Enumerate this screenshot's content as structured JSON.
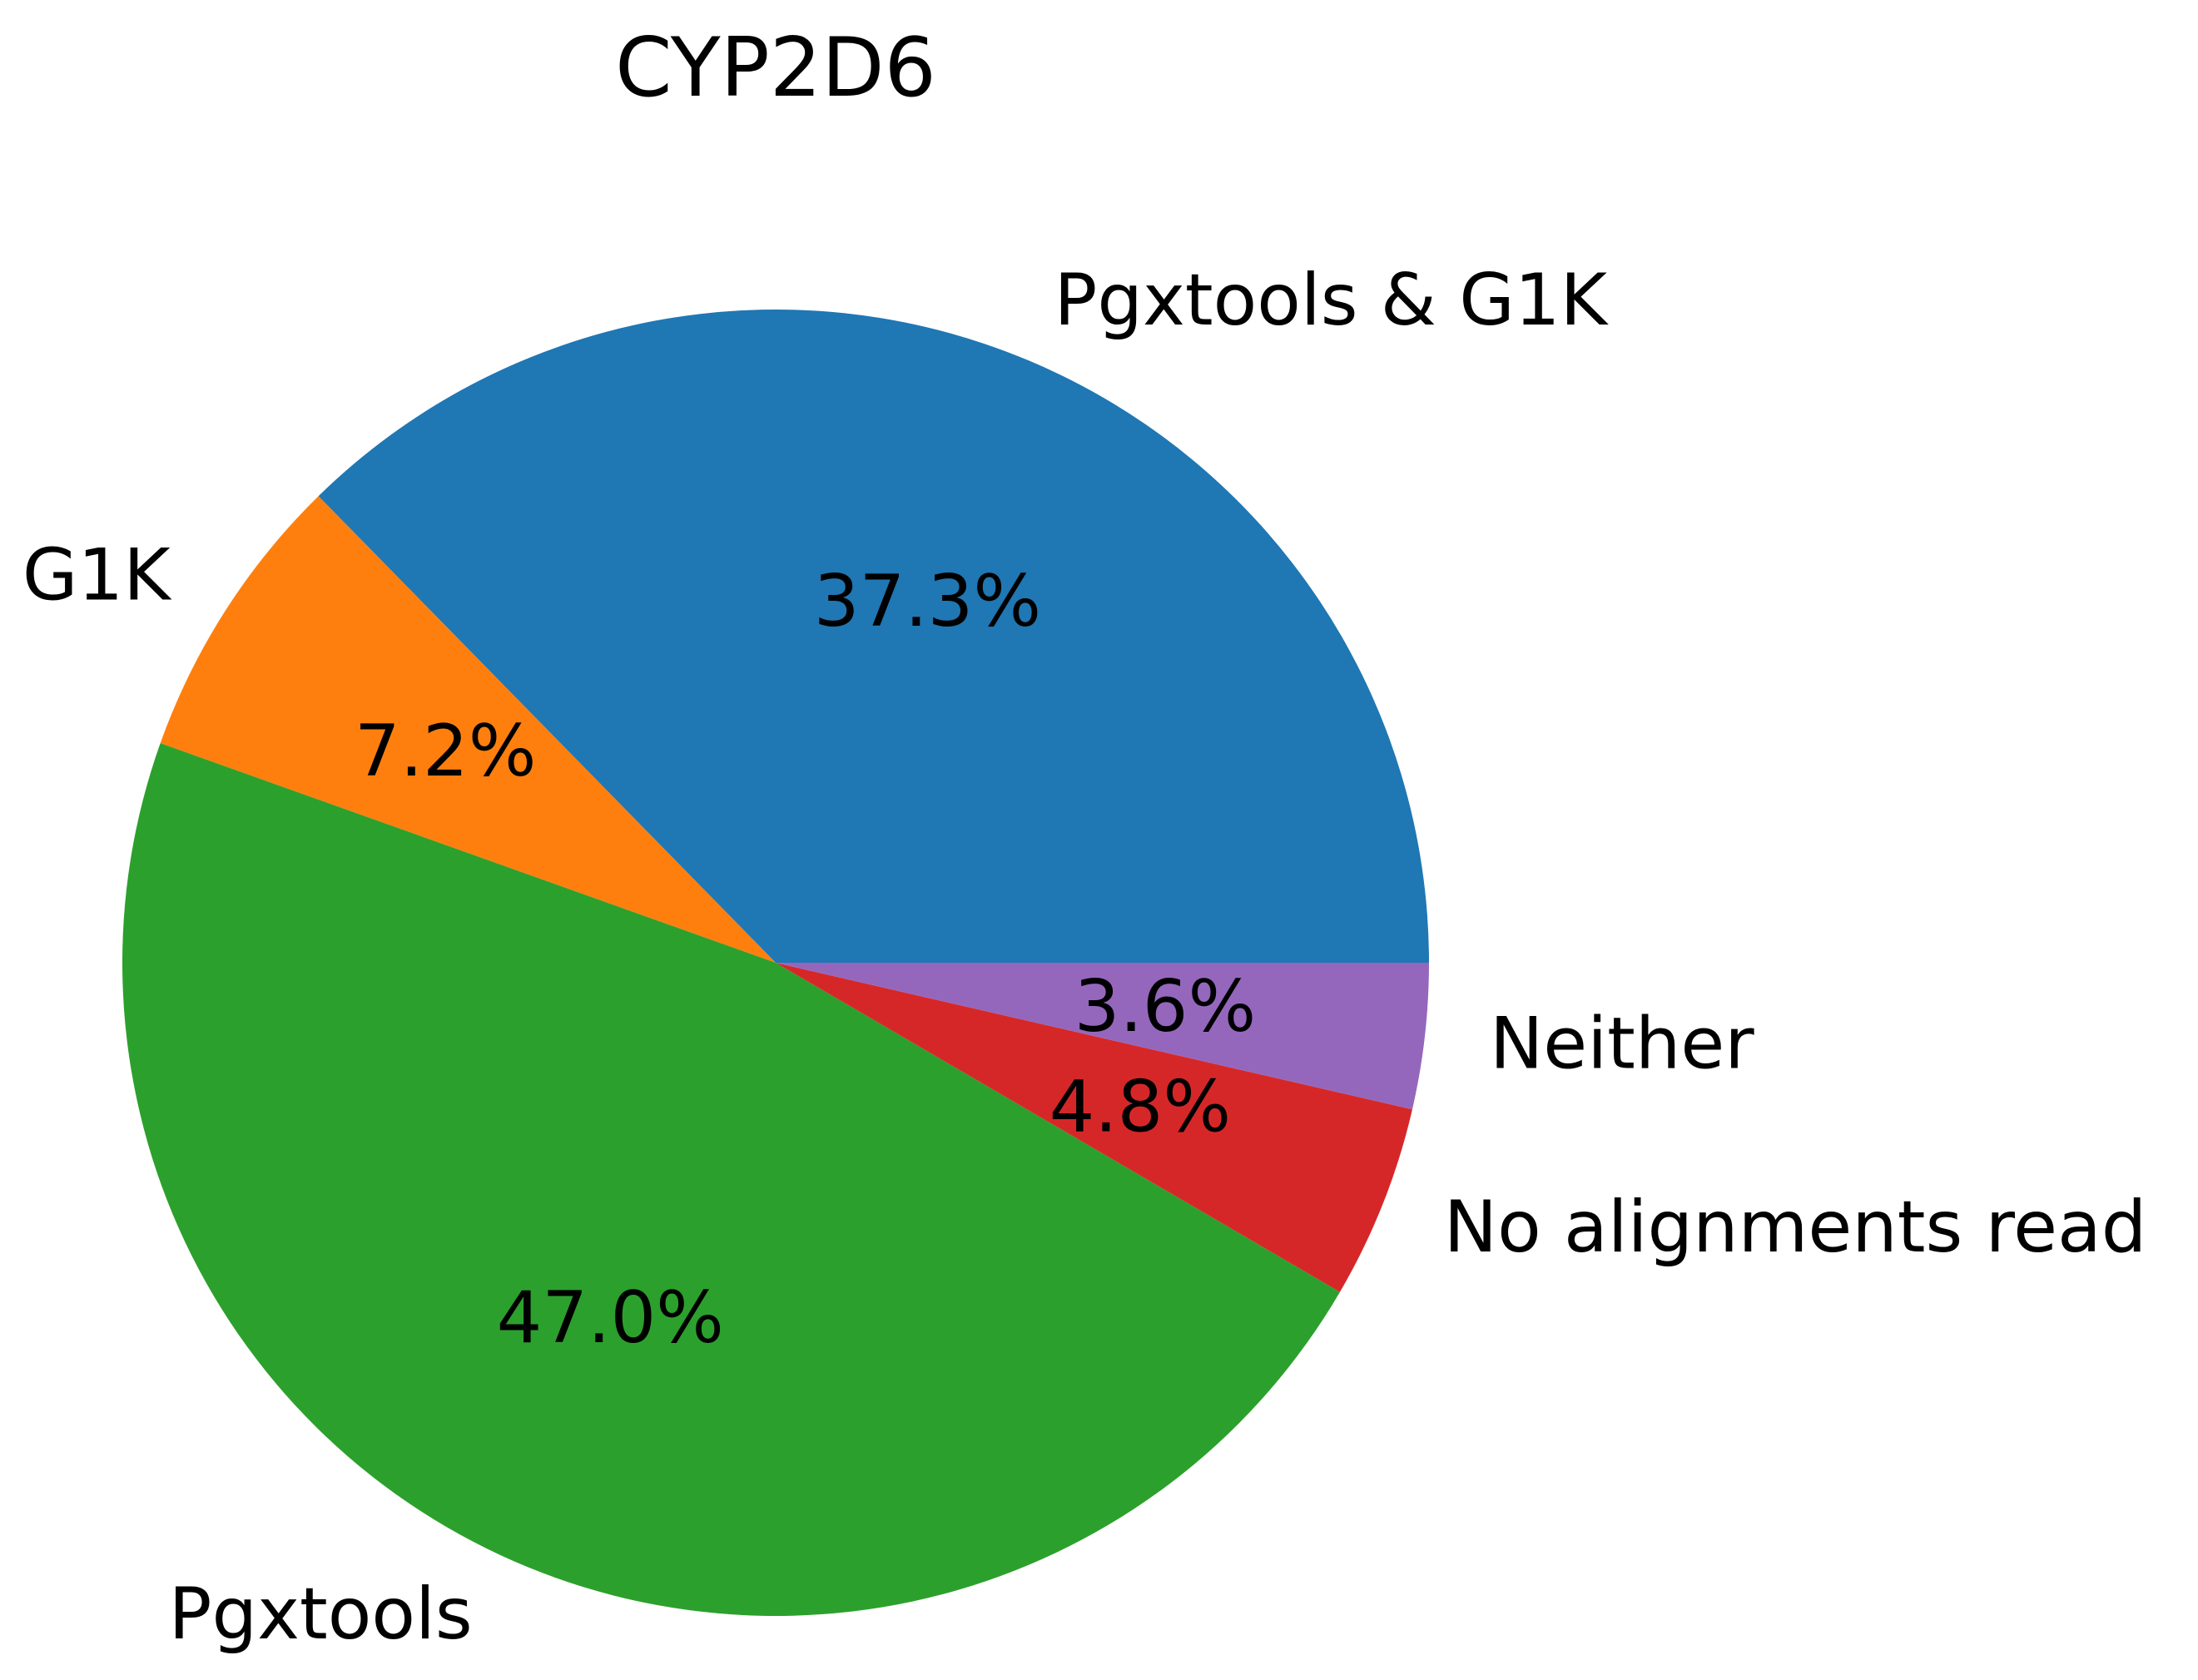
{
  "chart_data": {
    "type": "pie",
    "title": "CYP2D6",
    "slices": [
      {
        "label": "Pgxtools & G1K",
        "percent_label": "37.3%",
        "value": 37.3,
        "color": "#1f77b4"
      },
      {
        "label": "G1K",
        "percent_label": "7.2%",
        "value": 7.2,
        "color": "#ff7f0e"
      },
      {
        "label": "Pgxtools",
        "percent_label": "47.0%",
        "value": 47.0,
        "color": "#2ca02c"
      },
      {
        "label": "No alignments read",
        "percent_label": "4.8%",
        "value": 4.8,
        "color": "#d62728"
      },
      {
        "label": "Neither",
        "percent_label": "3.6%",
        "value": 3.6,
        "color": "#9467bd"
      }
    ],
    "start_angle": 0,
    "direction": "counterclockwise",
    "legend": "none"
  }
}
